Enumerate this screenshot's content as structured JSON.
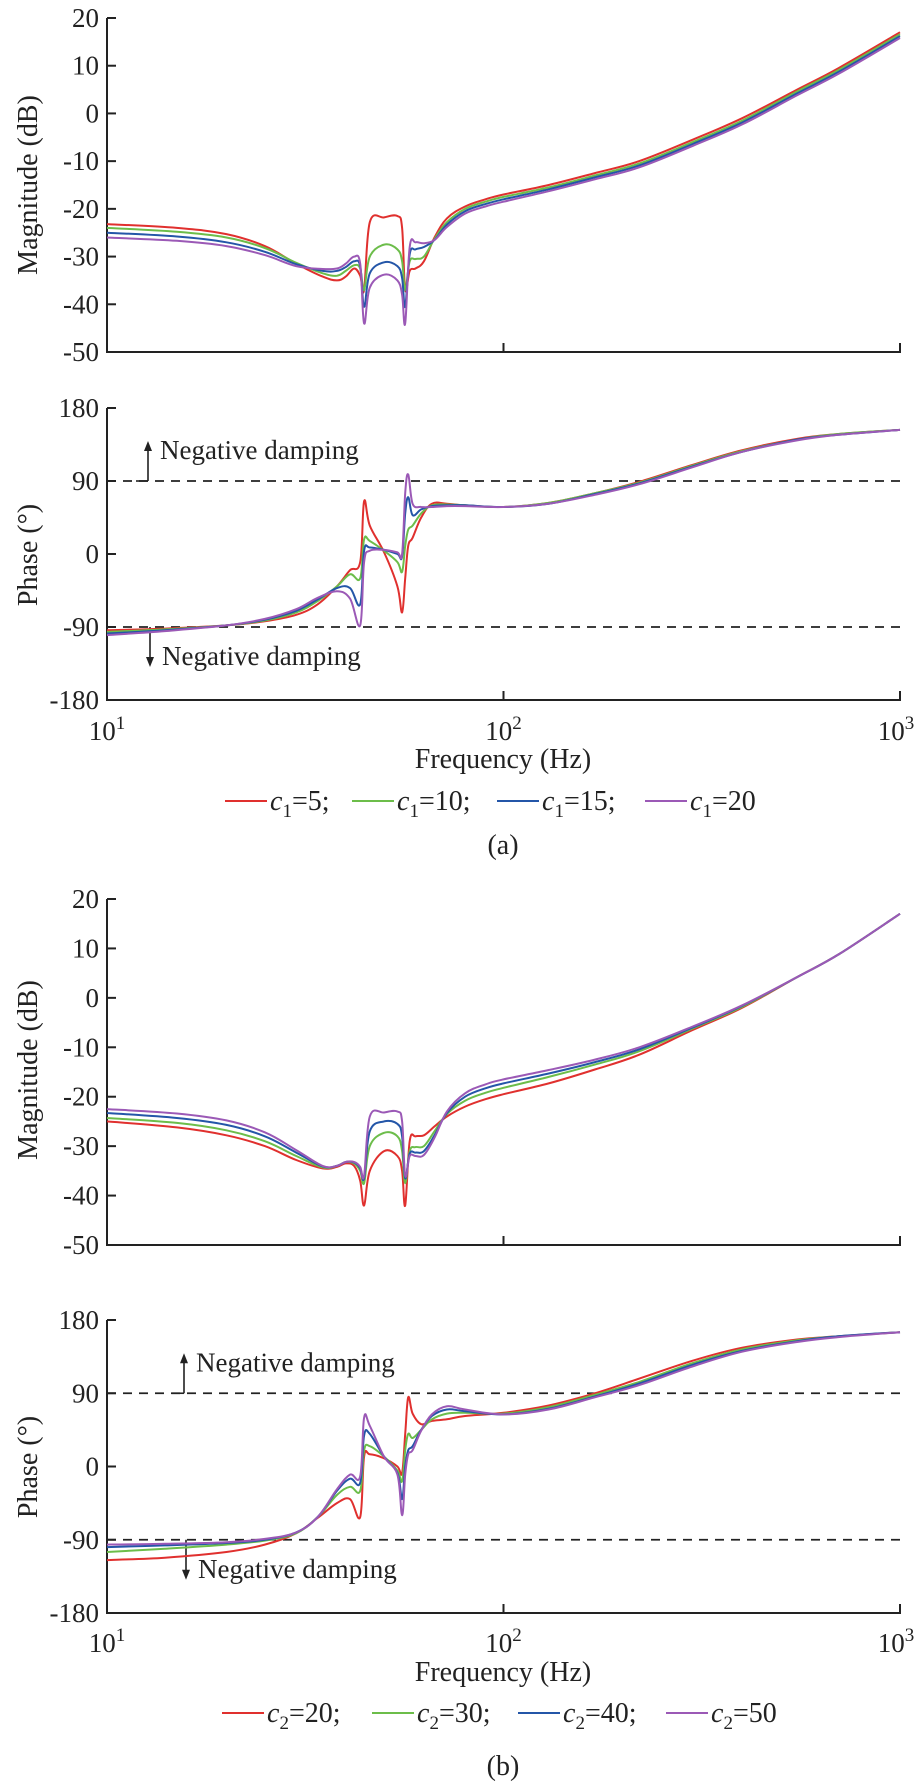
{
  "chart_data": [
    {
      "panel": "(a)",
      "type": "line",
      "subplot": "magnitude",
      "ylabel": "Magnitude (dB)",
      "xlabel": "",
      "xscale": "log",
      "xlim": [
        10,
        1000
      ],
      "ylim": [
        -50,
        20
      ],
      "yticks": [
        "20",
        "10",
        "0",
        "-10",
        "-20",
        "-30",
        "-40",
        "-50"
      ],
      "grid": false,
      "x": [
        10,
        15,
        20,
        25,
        30,
        35,
        38,
        40,
        42,
        43.5,
        44.5,
        46,
        50,
        54,
        55.5,
        56.5,
        58,
        60,
        63,
        67,
        72,
        80,
        90,
        100,
        130,
        170,
        220,
        300,
        400,
        550,
        700,
        1000
      ],
      "series": [
        {
          "name": "c1=5",
          "color": "#e0302e",
          "values": [
            -23.2,
            -24.0,
            -25.3,
            -27.8,
            -31.5,
            -34.2,
            -35.0,
            -34.2,
            -32.5,
            -34.0,
            -37.0,
            -22.8,
            -21.8,
            -21.5,
            -24.0,
            -37.0,
            -33.0,
            -32.5,
            -31.0,
            -26.0,
            -22.0,
            -19.5,
            -18.0,
            -17.0,
            -15.0,
            -12.5,
            -10.0,
            -5.5,
            -1.0,
            5.0,
            9.5,
            17.0
          ]
        },
        {
          "name": "c1=10",
          "color": "#6cbd4a",
          "values": [
            -24.0,
            -24.8,
            -26.0,
            -28.2,
            -31.3,
            -33.5,
            -34.0,
            -33.0,
            -31.8,
            -32.5,
            -37.0,
            -30.0,
            -27.5,
            -28.5,
            -31.0,
            -37.0,
            -31.0,
            -30.5,
            -30.0,
            -26.3,
            -22.8,
            -20.0,
            -18.5,
            -17.5,
            -15.5,
            -13.0,
            -10.5,
            -6.0,
            -1.5,
            4.6,
            9.1,
            16.6
          ]
        },
        {
          "name": "c1=15",
          "color": "#2456a8",
          "values": [
            -25.0,
            -25.8,
            -27.0,
            -29.0,
            -31.6,
            -33.0,
            -33.0,
            -32.2,
            -31.0,
            -32.0,
            -40.5,
            -33.5,
            -31.2,
            -32.0,
            -34.5,
            -40.5,
            -29.5,
            -28.5,
            -28.0,
            -26.5,
            -23.3,
            -20.5,
            -19.0,
            -18.0,
            -15.9,
            -13.4,
            -10.9,
            -6.4,
            -1.9,
            4.2,
            8.7,
            16.2
          ]
        },
        {
          "name": "c1=20",
          "color": "#9b59b6",
          "values": [
            -26.0,
            -26.7,
            -27.8,
            -29.7,
            -32.0,
            -32.6,
            -32.5,
            -31.5,
            -30.0,
            -31.5,
            -44.0,
            -36.5,
            -33.8,
            -35.0,
            -38.0,
            -44.0,
            -28.0,
            -27.0,
            -27.2,
            -26.5,
            -23.8,
            -21.0,
            -19.5,
            -18.5,
            -16.3,
            -13.8,
            -11.3,
            -6.8,
            -2.3,
            3.8,
            8.3,
            15.8
          ]
        }
      ]
    },
    {
      "panel": "(a)",
      "type": "line",
      "subplot": "phase",
      "ylabel": "Phase (°)",
      "xlabel": "Frequency (Hz)",
      "xscale": "log",
      "xlim": [
        10,
        1000
      ],
      "ylim": [
        -180,
        180
      ],
      "yticks": [
        "180",
        "90",
        "0",
        "-90",
        "-180"
      ],
      "xticks": [
        {
          "base": "10",
          "exp": "1"
        },
        {
          "base": "10",
          "exp": "2"
        },
        {
          "base": "10",
          "exp": "3"
        }
      ],
      "reference_lines": [
        90,
        -90
      ],
      "annotations": [
        {
          "text": "Negative damping",
          "direction": "up",
          "at": 90
        },
        {
          "text": "Negative damping",
          "direction": "down",
          "at": -90
        }
      ],
      "x": [
        10,
        14,
        20,
        25,
        30,
        34,
        38,
        41,
        43.5,
        44.5,
        46,
        50,
        54,
        55.5,
        56.5,
        57.5,
        59,
        62,
        66,
        72,
        80,
        100,
        130,
        170,
        220,
        300,
        400,
        550,
        700,
        1000
      ],
      "series": [
        {
          "name": "c1=5",
          "color": "#e0302e",
          "values": [
            -94,
            -92,
            -88,
            -83,
            -75,
            -62,
            -40,
            -20,
            -10,
            65,
            35,
            2,
            -40,
            -72,
            -30,
            10,
            20,
            45,
            62,
            62,
            60,
            58,
            63,
            75,
            89,
            110,
            128,
            142,
            148,
            153
          ]
        },
        {
          "name": "c1=10",
          "color": "#6cbd4a",
          "values": [
            -96,
            -93,
            -88,
            -82,
            -72,
            -58,
            -40,
            -25,
            -30,
            18,
            16,
            4,
            -10,
            -22,
            10,
            30,
            35,
            50,
            60,
            61,
            60,
            58,
            63,
            75,
            88,
            109,
            127,
            141,
            148,
            153
          ]
        },
        {
          "name": "c1=15",
          "color": "#2456a8",
          "values": [
            -98,
            -94,
            -88,
            -81,
            -70,
            -56,
            -42,
            -42,
            -62,
            4,
            8,
            5,
            0,
            -3,
            50,
            70,
            48,
            55,
            59,
            60,
            60,
            58,
            62,
            74,
            87,
            108,
            126,
            141,
            147,
            153
          ]
        },
        {
          "name": "c1=20",
          "color": "#9b59b6",
          "values": [
            -100,
            -95,
            -88,
            -80,
            -68,
            -54,
            -46,
            -55,
            -88,
            -10,
            4,
            5,
            2,
            0,
            75,
            98,
            62,
            58,
            58,
            59,
            59,
            58,
            62,
            73,
            86,
            107,
            126,
            140,
            147,
            153
          ]
        }
      ],
      "legend": {
        "placement": "bottom",
        "entries": [
          {
            "var": "c",
            "sub": "1",
            "eq": "=5;",
            "color": "#e0302e"
          },
          {
            "var": "c",
            "sub": "1",
            "eq": "=10;",
            "color": "#6cbd4a"
          },
          {
            "var": "c",
            "sub": "1",
            "eq": "=15;",
            "color": "#2456a8"
          },
          {
            "var": "c",
            "sub": "1",
            "eq": "=20",
            "color": "#9b59b6"
          }
        ]
      }
    },
    {
      "panel": "(b)",
      "type": "line",
      "subplot": "magnitude",
      "ylabel": "Magnitude (dB)",
      "xlabel": "",
      "xscale": "log",
      "xlim": [
        10,
        1000
      ],
      "ylim": [
        -50,
        20
      ],
      "yticks": [
        "20",
        "10",
        "0",
        "-10",
        "-20",
        "-30",
        "-40",
        "-50"
      ],
      "grid": false,
      "x": [
        10,
        15,
        20,
        25,
        30,
        35,
        38,
        40,
        42,
        43.5,
        44.5,
        46,
        50,
        54,
        55.5,
        56.5,
        58,
        60,
        63,
        67,
        72,
        80,
        90,
        100,
        130,
        170,
        220,
        300,
        400,
        550,
        700,
        1000
      ],
      "series": [
        {
          "name": "c2=20",
          "color": "#e0302e",
          "values": [
            -25.0,
            -26.2,
            -27.8,
            -30.0,
            -32.8,
            -34.5,
            -34.2,
            -33.5,
            -34.0,
            -37.0,
            -42.0,
            -35.0,
            -31.0,
            -32.0,
            -35.0,
            -42.0,
            -29.0,
            -28.0,
            -27.8,
            -26.0,
            -24.0,
            -22.0,
            -20.5,
            -19.5,
            -17.3,
            -14.5,
            -11.5,
            -6.5,
            -2.0,
            4.2,
            8.8,
            17.0
          ]
        },
        {
          "name": "c2=30",
          "color": "#6cbd4a",
          "values": [
            -24.3,
            -25.3,
            -26.8,
            -29.0,
            -32.0,
            -34.3,
            -34.0,
            -33.2,
            -33.5,
            -35.0,
            -37.5,
            -30.0,
            -27.3,
            -28.0,
            -31.0,
            -37.5,
            -31.0,
            -30.2,
            -30.0,
            -27.0,
            -23.5,
            -20.8,
            -19.2,
            -18.2,
            -16.0,
            -13.5,
            -10.8,
            -6.2,
            -1.8,
            4.2,
            8.8,
            17.0
          ]
        },
        {
          "name": "c2=40",
          "color": "#2456a8",
          "values": [
            -23.3,
            -24.3,
            -25.7,
            -28.0,
            -31.3,
            -34.1,
            -34.0,
            -33.2,
            -33.3,
            -34.5,
            -36.5,
            -27.0,
            -25.0,
            -25.5,
            -28.0,
            -36.5,
            -31.5,
            -31.3,
            -31.0,
            -27.8,
            -23.3,
            -20.0,
            -18.3,
            -17.3,
            -15.3,
            -13.0,
            -10.4,
            -6.0,
            -1.6,
            4.2,
            8.8,
            17.0
          ]
        },
        {
          "name": "c2=50",
          "color": "#9b59b6",
          "values": [
            -22.5,
            -23.4,
            -24.8,
            -27.2,
            -30.8,
            -34.0,
            -34.0,
            -33.2,
            -33.2,
            -34.2,
            -36.0,
            -24.0,
            -23.2,
            -23.0,
            -25.0,
            -36.0,
            -32.0,
            -32.0,
            -31.8,
            -28.3,
            -23.0,
            -19.3,
            -17.5,
            -16.5,
            -14.6,
            -12.5,
            -10.0,
            -5.8,
            -1.5,
            4.2,
            8.8,
            17.0
          ]
        }
      ]
    },
    {
      "panel": "(b)",
      "type": "line",
      "subplot": "phase",
      "ylabel": "Phase (°)",
      "xlabel": "Frequency (Hz)",
      "xscale": "log",
      "xlim": [
        10,
        1000
      ],
      "ylim": [
        -180,
        180
      ],
      "yticks": [
        "180",
        "90",
        "0",
        "-90",
        "-180"
      ],
      "xticks": [
        {
          "base": "10",
          "exp": "1"
        },
        {
          "base": "10",
          "exp": "2"
        },
        {
          "base": "10",
          "exp": "3"
        }
      ],
      "reference_lines": [
        90,
        -90
      ],
      "annotations": [
        {
          "text": "Negative damping",
          "direction": "up",
          "at": 90
        },
        {
          "text": "Negative damping",
          "direction": "down",
          "at": -90
        }
      ],
      "x": [
        10,
        14,
        20,
        25,
        30,
        34,
        38,
        41,
        43.5,
        44.5,
        46,
        50,
        54,
        55.5,
        56.5,
        57.5,
        59,
        62,
        66,
        72,
        80,
        100,
        130,
        170,
        220,
        300,
        400,
        550,
        700,
        1000
      ],
      "series": [
        {
          "name": "c2=20",
          "color": "#e0302e",
          "values": [
            -115,
            -112,
            -105,
            -96,
            -82,
            -63,
            -45,
            -40,
            -62,
            12,
            15,
            10,
            0,
            -8,
            40,
            85,
            65,
            52,
            56,
            58,
            62,
            66,
            75,
            90,
            108,
            130,
            146,
            156,
            160,
            165
          ]
        },
        {
          "name": "c2=30",
          "color": "#6cbd4a",
          "values": [
            -105,
            -101,
            -96,
            -91,
            -82,
            -62,
            -35,
            -25,
            -30,
            20,
            25,
            12,
            -5,
            -18,
            20,
            40,
            35,
            45,
            58,
            65,
            66,
            65,
            73,
            88,
            104,
            127,
            144,
            155,
            160,
            165
          ]
        },
        {
          "name": "c2=40",
          "color": "#2456a8",
          "values": [
            -99,
            -97,
            -94,
            -90,
            -81,
            -62,
            -30,
            -15,
            -20,
            38,
            40,
            12,
            -8,
            -40,
            0,
            20,
            25,
            45,
            62,
            70,
            68,
            64,
            71,
            86,
            102,
            125,
            142,
            154,
            160,
            165
          ]
        },
        {
          "name": "c2=50",
          "color": "#9b59b6",
          "values": [
            -96,
            -95,
            -93,
            -89,
            -81,
            -62,
            -28,
            -10,
            -12,
            60,
            50,
            12,
            -10,
            -60,
            -10,
            15,
            20,
            44,
            64,
            74,
            70,
            64,
            70,
            85,
            100,
            123,
            141,
            153,
            159,
            165
          ]
        }
      ],
      "legend": {
        "placement": "bottom",
        "entries": [
          {
            "var": "c",
            "sub": "2",
            "eq": "=20;",
            "color": "#e0302e"
          },
          {
            "var": "c",
            "sub": "2",
            "eq": "=30;",
            "color": "#6cbd4a"
          },
          {
            "var": "c",
            "sub": "2",
            "eq": "=40;",
            "color": "#2456a8"
          },
          {
            "var": "c",
            "sub": "2",
            "eq": "=50",
            "color": "#9b59b6"
          }
        ]
      }
    }
  ],
  "labels": {
    "mag_ylabel": "Magnitude (dB)",
    "phase_ylabel": "Phase (°)",
    "xlabel": "Frequency (Hz)",
    "annot_up": "Negative damping",
    "annot_down": "Negative damping",
    "caption_a": "(a)",
    "caption_b": "(b)"
  }
}
